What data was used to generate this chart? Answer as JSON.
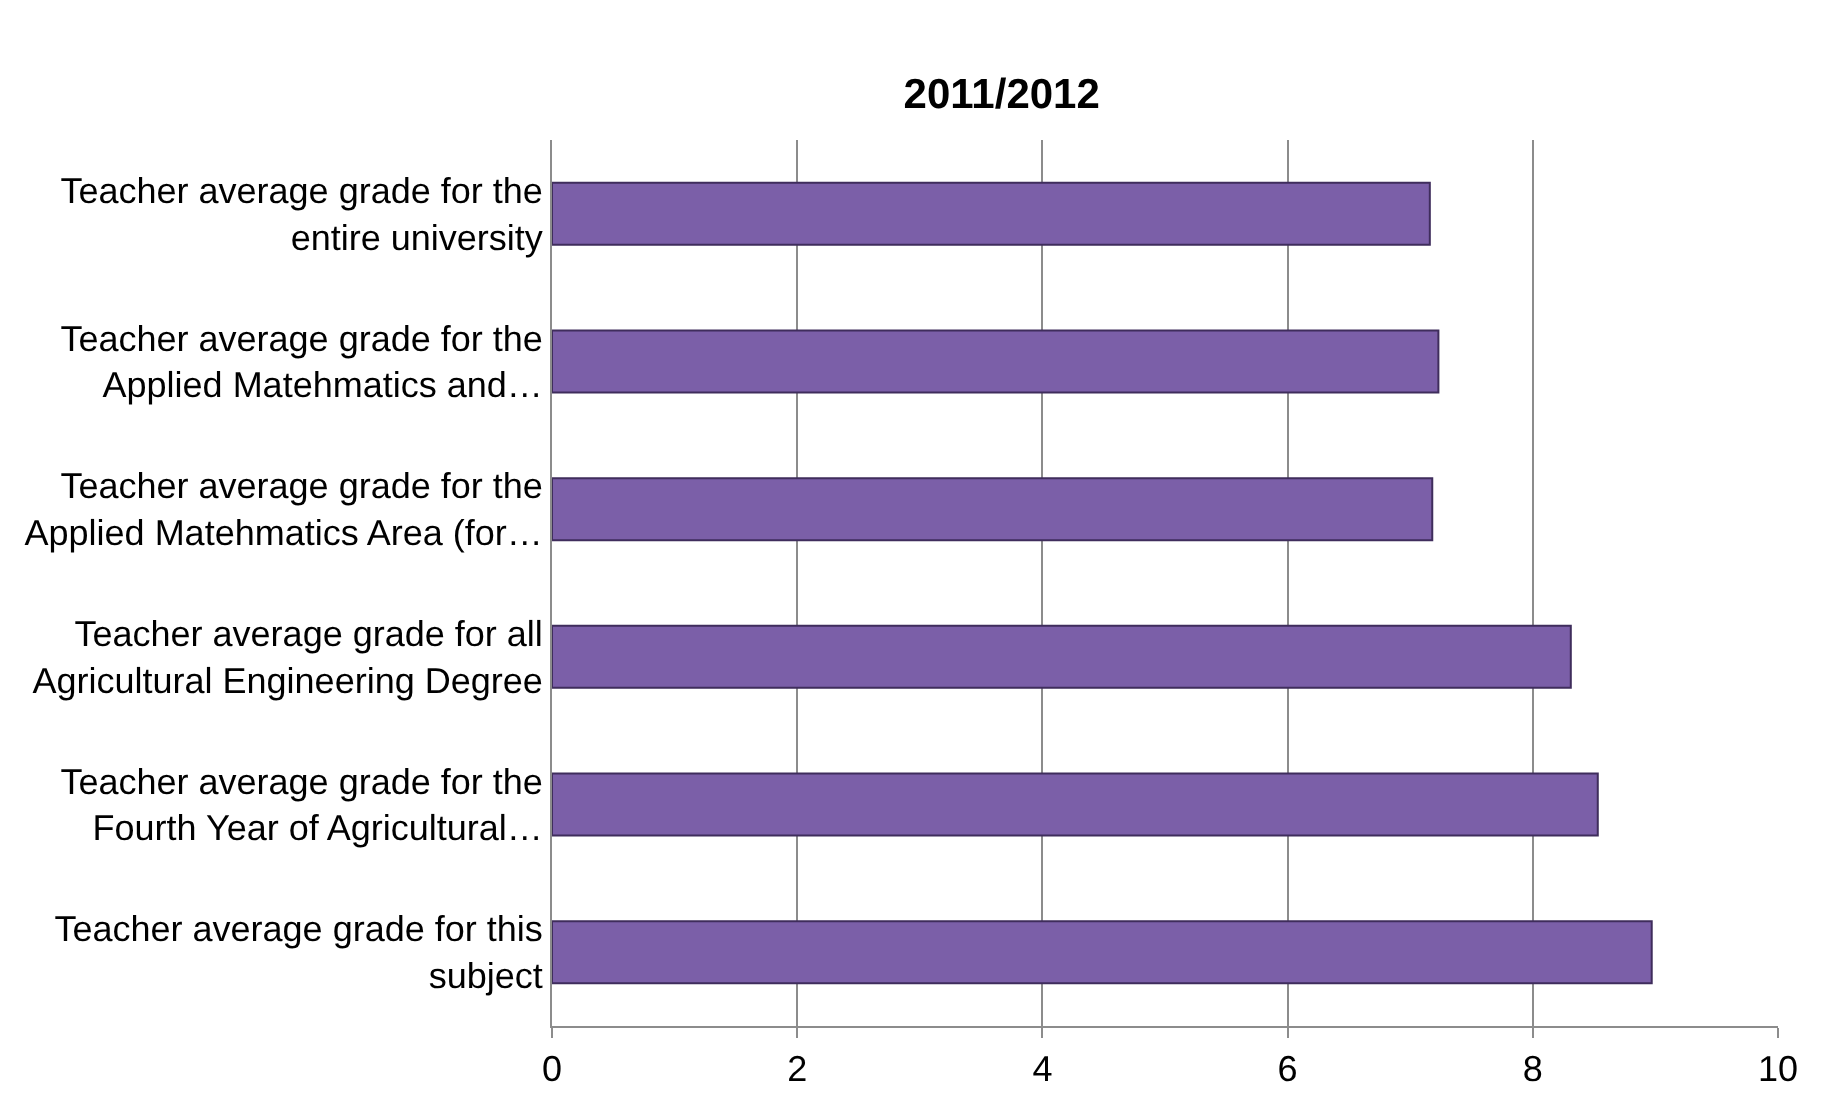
{
  "chart_data": {
    "type": "bar",
    "orientation": "horizontal",
    "title": "2011/2012",
    "categories": [
      "Teacher average grade for the entire university",
      "Teacher average grade for the Applied Matehmatics and…",
      "Teacher average grade for the Applied Matehmatics Area (for…",
      "Teacher average grade for all Agricultural Engineering Degree",
      "Teacher average grade for the Fourth Year of Agricultural…",
      "Teacher average grade for this subject"
    ],
    "values": [
      7.16,
      7.23,
      7.18,
      8.31,
      8.53,
      8.97
    ],
    "color": "#7b5fa8",
    "xlim": [
      0,
      10
    ],
    "xticks": [
      0,
      2,
      4,
      6,
      8,
      10
    ],
    "grid": "x",
    "legend": false
  }
}
